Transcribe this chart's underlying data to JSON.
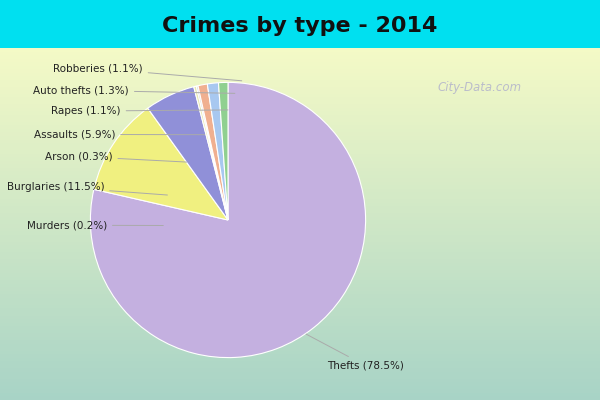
{
  "title": "Crimes by type - 2014",
  "title_fontsize": 16,
  "title_fontweight": "bold",
  "labels": [
    "Thefts",
    "Burglaries",
    "Assaults",
    "Arson",
    "Murders",
    "Rapes",
    "Auto thefts",
    "Robberies"
  ],
  "values": [
    78.5,
    11.5,
    5.9,
    0.3,
    0.2,
    1.1,
    1.3,
    1.1
  ],
  "colors": [
    "#c4b0e0",
    "#f0f080",
    "#9090d8",
    "#e8e8b0",
    "#d0d0d0",
    "#f0b090",
    "#a8c8f0",
    "#90d090"
  ],
  "background_top": "#00e0f0",
  "background_main_top": "#e8f8f8",
  "background_main_bottom": "#d0e8d0",
  "watermark": "City-Data.com",
  "label_data": [
    {
      "text": "Thefts (78.5%)",
      "side": "right"
    },
    {
      "text": "Burglaries (11.5%)",
      "side": "left"
    },
    {
      "text": "Assaults (5.9%)",
      "side": "left"
    },
    {
      "text": "Arson (0.3%)",
      "side": "left"
    },
    {
      "text": "Murders (0.2%)",
      "side": "left"
    },
    {
      "text": "Rapes (1.1%)",
      "side": "left"
    },
    {
      "text": "Auto thefts (1.3%)",
      "side": "left"
    },
    {
      "text": "Robberies (1.1%)",
      "side": "left"
    }
  ]
}
